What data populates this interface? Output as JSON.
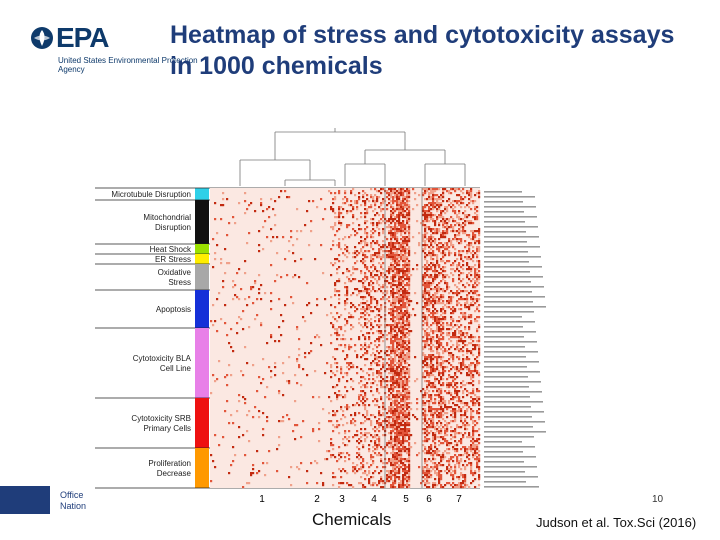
{
  "logo": {
    "text": "EPA",
    "sub": "United States Environmental Protection Agency"
  },
  "title": "Heatmap of stress and cytotoxicity assays in 1000 chemicals",
  "slide_number": "10",
  "footer_left": "Office Nation",
  "citation": "Judson et al. Tox.Sci (2016)",
  "colors": {
    "brand": "#1f3d7a",
    "heat": "#d9482b",
    "background_cell": "#fbe8e2"
  },
  "chart_data": {
    "type": "heatmap",
    "xlabel": "Chemicals",
    "clusters": [
      "1",
      "2",
      "3",
      "4",
      "5",
      "6",
      "7"
    ],
    "categories": [
      {
        "name": "Microtubule Disruption",
        "color": "#2fd0e8"
      },
      {
        "name": "Mitochondrial Disruption",
        "color": "#111111"
      },
      {
        "name": "Heat Shock",
        "color": "#9be000"
      },
      {
        "name": "ER Stress",
        "color": "#ffee00"
      },
      {
        "name": "Oxidative Stress",
        "color": "#a8a8a8"
      },
      {
        "name": "Apoptosis",
        "color": "#1530d8"
      },
      {
        "name": "Cytotoxicity BLA Cell Line",
        "color": "#e880e8"
      },
      {
        "name": "Cytotoxicity SRB Primary Cells",
        "color": "#ee1111"
      },
      {
        "name": "Proliferation Decrease",
        "color": "#ff9900"
      }
    ]
  }
}
